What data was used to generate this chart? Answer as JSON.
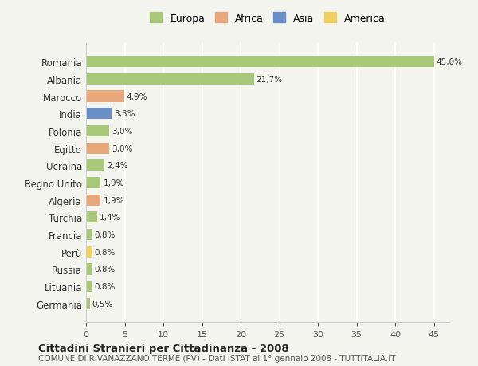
{
  "countries": [
    "Romania",
    "Albania",
    "Marocco",
    "India",
    "Polonia",
    "Egitto",
    "Ucraina",
    "Regno Unito",
    "Algeria",
    "Turchia",
    "Francia",
    "Perù",
    "Russia",
    "Lituania",
    "Germania"
  ],
  "values": [
    45.0,
    21.7,
    4.9,
    3.3,
    3.0,
    3.0,
    2.4,
    1.9,
    1.9,
    1.4,
    0.8,
    0.8,
    0.8,
    0.8,
    0.5
  ],
  "labels": [
    "45,0%",
    "21,7%",
    "4,9%",
    "3,3%",
    "3,0%",
    "3,0%",
    "2,4%",
    "1,9%",
    "1,9%",
    "1,4%",
    "0,8%",
    "0,8%",
    "0,8%",
    "0,8%",
    "0,5%"
  ],
  "continents": [
    "Europa",
    "Europa",
    "Africa",
    "Asia",
    "Europa",
    "Africa",
    "Europa",
    "Europa",
    "Africa",
    "Europa",
    "Europa",
    "America",
    "Europa",
    "Europa",
    "Europa"
  ],
  "colors": {
    "Europa": "#a8c87a",
    "Africa": "#e8a87c",
    "Asia": "#6a8fc8",
    "America": "#f0d060"
  },
  "title1": "Cittadini Stranieri per Cittadinanza - 2008",
  "title2": "COMUNE DI RIVANAZZANO TERME (PV) - Dati ISTAT al 1° gennaio 2008 - TUTTITALIA.IT",
  "xlim": [
    0,
    47
  ],
  "xticks": [
    0,
    5,
    10,
    15,
    20,
    25,
    30,
    35,
    40,
    45
  ],
  "background_color": "#f5f5f0",
  "grid_color": "#ffffff",
  "bar_height": 0.65
}
